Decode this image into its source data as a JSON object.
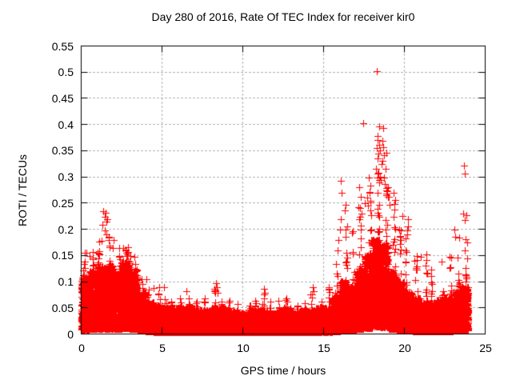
{
  "frame": {
    "axis_color": "#000000",
    "grid_color": "#8f8f8f",
    "background": "#ffffff"
  },
  "chart_data": {
    "type": "scatter",
    "title": "Day 280 of 2016, Rate Of TEC Index for receiver kir0",
    "xlabel": "GPS time / hours",
    "ylabel": "ROTI / TECUs",
    "xlim": [
      0,
      25
    ],
    "ylim": [
      0,
      0.55
    ],
    "xticks": {
      "values": [
        0,
        5,
        10,
        15,
        20,
        25
      ],
      "labels": [
        "0",
        "5",
        "10",
        "15",
        "20",
        "25"
      ]
    },
    "yticks": {
      "values": [
        0,
        0.05,
        0.1,
        0.15,
        0.2,
        0.25,
        0.3,
        0.35,
        0.4,
        0.45,
        0.5,
        0.55
      ],
      "labels": [
        "0",
        "0.05",
        "0.1",
        "0.15",
        "0.2",
        "0.25",
        "0.3",
        "0.35",
        "0.4",
        "0.45",
        "0.5",
        "0.55"
      ]
    },
    "grid": true,
    "legend": "none",
    "series": [
      {
        "name": "ROTI",
        "marker": "plus",
        "color": "#ff0000",
        "x_start_hour": 0,
        "x_end_hour": 23.93,
        "bin_width_hours": 0.5,
        "bins_dense_top_and_max": [
          [
            0.11,
            0.16
          ],
          [
            0.12,
            0.16
          ],
          [
            0.13,
            0.2
          ],
          [
            0.13,
            0.19
          ],
          [
            0.12,
            0.17
          ],
          [
            0.14,
            0.17
          ],
          [
            0.12,
            0.15
          ],
          [
            0.08,
            0.11
          ],
          [
            0.06,
            0.1
          ],
          [
            0.055,
            0.09
          ],
          [
            0.05,
            0.085
          ],
          [
            0.05,
            0.07
          ],
          [
            0.05,
            0.08
          ],
          [
            0.05,
            0.075
          ],
          [
            0.045,
            0.065
          ],
          [
            0.045,
            0.07
          ],
          [
            0.05,
            0.095
          ],
          [
            0.05,
            0.075
          ],
          [
            0.045,
            0.065
          ],
          [
            0.04,
            0.06
          ],
          [
            0.04,
            0.06
          ],
          [
            0.045,
            0.065
          ],
          [
            0.045,
            0.085
          ],
          [
            0.04,
            0.065
          ],
          [
            0.045,
            0.065
          ],
          [
            0.05,
            0.07
          ],
          [
            0.04,
            0.06
          ],
          [
            0.045,
            0.07
          ],
          [
            0.045,
            0.085
          ],
          [
            0.05,
            0.07
          ],
          [
            0.05,
            0.095
          ],
          [
            0.07,
            0.15
          ],
          [
            0.1,
            0.23
          ],
          [
            0.09,
            0.2
          ],
          [
            0.12,
            0.28
          ],
          [
            0.15,
            0.32
          ],
          [
            0.18,
            0.36
          ],
          [
            0.17,
            0.35
          ],
          [
            0.12,
            0.27
          ],
          [
            0.1,
            0.21
          ],
          [
            0.08,
            0.2
          ],
          [
            0.07,
            0.15
          ],
          [
            0.06,
            0.15
          ],
          [
            0.06,
            0.13
          ],
          [
            0.065,
            0.14
          ],
          [
            0.07,
            0.15
          ],
          [
            0.08,
            0.2
          ],
          [
            0.09,
            0.24
          ]
        ],
        "peak_points": [
          [
            18.3,
            0.502
          ],
          [
            17.47,
            0.402
          ],
          [
            18.42,
            0.397
          ],
          [
            18.7,
            0.393
          ],
          [
            18.32,
            0.378
          ],
          [
            18.36,
            0.371
          ],
          [
            18.45,
            0.362
          ],
          [
            18.3,
            0.355
          ],
          [
            18.5,
            0.351
          ],
          [
            18.38,
            0.344
          ],
          [
            18.62,
            0.369
          ],
          [
            18.68,
            0.356
          ],
          [
            18.72,
            0.341
          ],
          [
            18.66,
            0.331
          ],
          [
            18.58,
            0.324
          ],
          [
            18.25,
            0.315
          ],
          [
            18.35,
            0.306
          ],
          [
            18.48,
            0.3
          ],
          [
            18.55,
            0.294
          ],
          [
            18.42,
            0.289
          ],
          [
            18.75,
            0.299
          ],
          [
            18.8,
            0.286
          ],
          [
            18.9,
            0.275
          ],
          [
            16.08,
            0.292
          ],
          [
            16.12,
            0.27
          ],
          [
            16.35,
            0.246
          ],
          [
            16.3,
            0.236
          ],
          [
            16.05,
            0.22
          ],
          [
            16.0,
            0.2
          ],
          [
            15.9,
            0.18
          ],
          [
            15.85,
            0.16
          ],
          [
            17.2,
            0.28
          ],
          [
            17.3,
            0.262
          ],
          [
            17.15,
            0.242
          ],
          [
            17.35,
            0.23
          ],
          [
            17.55,
            0.25
          ],
          [
            17.7,
            0.26
          ],
          [
            17.75,
            0.245
          ],
          [
            17.85,
            0.27
          ],
          [
            17.9,
            0.255
          ],
          [
            19.0,
            0.28
          ],
          [
            19.05,
            0.262
          ],
          [
            19.1,
            0.247
          ],
          [
            19.3,
            0.17
          ],
          [
            19.4,
            0.156
          ],
          [
            19.9,
            0.225
          ],
          [
            20.2,
            0.22
          ],
          [
            20.22,
            0.205
          ],
          [
            20.18,
            0.19
          ],
          [
            20.6,
            0.14
          ],
          [
            21.0,
            0.148
          ],
          [
            21.35,
            0.152
          ],
          [
            22.3,
            0.138
          ],
          [
            22.8,
            0.147
          ],
          [
            23.1,
            0.2
          ],
          [
            23.15,
            0.185
          ],
          [
            23.62,
            0.23
          ],
          [
            23.68,
            0.322
          ],
          [
            23.72,
            0.307
          ],
          [
            23.75,
            0.218
          ],
          [
            1.38,
            0.235
          ],
          [
            1.52,
            0.232
          ],
          [
            1.45,
            0.224
          ],
          [
            1.56,
            0.214
          ],
          [
            1.33,
            0.209
          ],
          [
            1.62,
            0.219
          ],
          [
            1.48,
            0.198
          ],
          [
            1.58,
            0.19
          ],
          [
            1.28,
            0.178
          ],
          [
            1.7,
            0.184
          ],
          [
            1.75,
            0.169
          ],
          [
            2.02,
            0.179
          ],
          [
            1.95,
            0.164
          ],
          [
            2.6,
            0.164
          ],
          [
            2.75,
            0.159
          ],
          [
            2.9,
            0.157
          ],
          [
            3.05,
            0.149
          ],
          [
            0.3,
            0.155
          ],
          [
            0.5,
            0.149
          ],
          [
            0.2,
            0.139
          ],
          [
            4.05,
            0.104
          ],
          [
            4.5,
            0.088
          ],
          [
            5.1,
            0.089
          ],
          [
            6.5,
            0.082
          ],
          [
            8.35,
            0.097
          ],
          [
            8.4,
            0.09
          ],
          [
            8.3,
            0.084
          ],
          [
            8.45,
            0.078
          ],
          [
            11.3,
            0.087
          ],
          [
            11.35,
            0.079
          ],
          [
            14.35,
            0.089
          ],
          [
            14.4,
            0.081
          ]
        ]
      }
    ],
    "render_hints": {
      "seed": 20161006,
      "base_points_per_bin": 300,
      "legend_position": "none"
    }
  }
}
